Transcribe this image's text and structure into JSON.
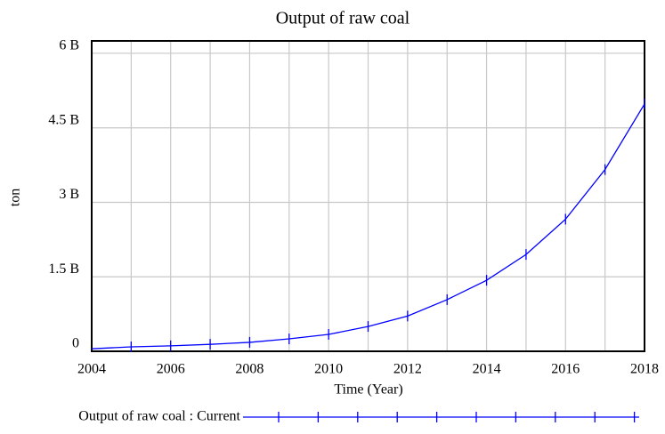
{
  "chart_data": {
    "type": "line",
    "title": "Output of raw coal",
    "xlabel": "Time (Year)",
    "ylabel": "ton",
    "x": [
      2004,
      2005,
      2006,
      2007,
      2008,
      2009,
      2010,
      2011,
      2012,
      2013,
      2014,
      2015,
      2016,
      2017,
      2018
    ],
    "series": [
      {
        "name": "Output of raw coal : Current",
        "color": "#0000ff",
        "values": [
          50000000,
          90000000,
          110000000,
          140000000,
          180000000,
          250000000,
          340000000,
          500000000,
          710000000,
          1040000000,
          1430000000,
          1950000000,
          2660000000,
          3660000000,
          4980000000
        ]
      }
    ],
    "xlim": [
      2004,
      2018
    ],
    "xticks": [
      2004,
      2006,
      2008,
      2010,
      2012,
      2014,
      2016,
      2018
    ],
    "ylim": [
      0,
      6250000000
    ],
    "yticks": [
      0,
      {
        "value": 1500000000,
        "label": "1.5 B"
      },
      {
        "value": 3000000000,
        "label": "3 B"
      },
      {
        "value": 4500000000,
        "label": "4.5 B"
      },
      {
        "value": 6000000000,
        "label": "6 B"
      }
    ],
    "grid": true
  }
}
